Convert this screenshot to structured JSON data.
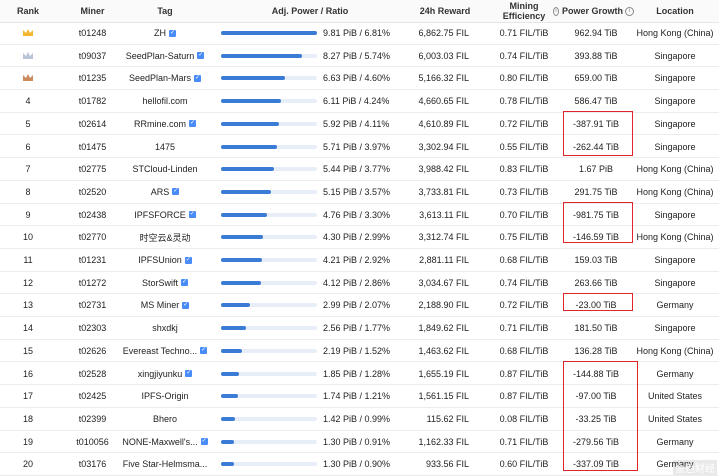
{
  "columns": {
    "rank": "Rank",
    "miner": "Miner",
    "tag": "Tag",
    "power": "Adj. Power / Ratio",
    "reward": "24h Reward",
    "eff_line1": "Mining",
    "eff_line2": "Efficiency",
    "growth": "Power Growth",
    "location": "Location"
  },
  "colors": {
    "bar": "#3a7bd5",
    "highlight": "#e0242a",
    "verified": "#4a8cf7"
  },
  "rows": [
    {
      "rank": "1",
      "miner": "t01248",
      "tag": "ZH",
      "verified": true,
      "power": "9.81 PiB / 6.81%",
      "bar": 1.0,
      "reward": "6,862.75 FIL",
      "eff": "0.71 FIL/TiB",
      "growth": "962.94 TiB",
      "loc": "Hong Kong (China)",
      "crown": "gold"
    },
    {
      "rank": "2",
      "miner": "t09037",
      "tag": "SeedPlan-Saturn",
      "verified": true,
      "power": "8.27 PiB / 5.74%",
      "bar": 0.84,
      "reward": "6,003.03 FIL",
      "eff": "0.74 FIL/TiB",
      "growth": "393.88 TiB",
      "loc": "Singapore",
      "crown": "silver"
    },
    {
      "rank": "3",
      "miner": "t01235",
      "tag": "SeedPlan-Mars",
      "verified": true,
      "power": "6.63 PiB / 4.60%",
      "bar": 0.67,
      "reward": "5,166.32 FIL",
      "eff": "0.80 FIL/TiB",
      "growth": "659.00 TiB",
      "loc": "Singapore",
      "crown": "bronze"
    },
    {
      "rank": "4",
      "miner": "t01782",
      "tag": "hellofil.com",
      "verified": false,
      "power": "6.11 PiB / 4.24%",
      "bar": 0.62,
      "reward": "4,660.65 FIL",
      "eff": "0.78 FIL/TiB",
      "growth": "586.47 TiB",
      "loc": "Singapore"
    },
    {
      "rank": "5",
      "miner": "t02614",
      "tag": "RRmine.com",
      "verified": true,
      "power": "5.92 PiB / 4.11%",
      "bar": 0.6,
      "reward": "4,610.89 FIL",
      "eff": "0.72 FIL/TiB",
      "growth": "-387.91 TiB",
      "loc": "Singapore"
    },
    {
      "rank": "6",
      "miner": "t01475",
      "tag": "1475",
      "verified": false,
      "power": "5.71 PiB / 3.97%",
      "bar": 0.58,
      "reward": "3,302.94 FIL",
      "eff": "0.55 FIL/TiB",
      "growth": "-262.44 TiB",
      "loc": "Singapore"
    },
    {
      "rank": "7",
      "miner": "t02775",
      "tag": "STCloud-Linden",
      "verified": false,
      "power": "5.44 PiB / 3.77%",
      "bar": 0.55,
      "reward": "3,988.42 FIL",
      "eff": "0.83 FIL/TiB",
      "growth": "1.67 PiB",
      "loc": "Hong Kong (China)"
    },
    {
      "rank": "8",
      "miner": "t02520",
      "tag": "ARS",
      "verified": true,
      "power": "5.15 PiB / 3.57%",
      "bar": 0.52,
      "reward": "3,733.81 FIL",
      "eff": "0.73 FIL/TiB",
      "growth": "291.75 TiB",
      "loc": "Hong Kong (China)"
    },
    {
      "rank": "9",
      "miner": "t02438",
      "tag": "IPFSFORCE",
      "verified": true,
      "power": "4.76 PiB / 3.30%",
      "bar": 0.48,
      "reward": "3,613.11 FIL",
      "eff": "0.70 FIL/TiB",
      "growth": "-981.75 TiB",
      "loc": "Singapore"
    },
    {
      "rank": "10",
      "miner": "t02770",
      "tag": "时空云&灵动",
      "verified": false,
      "power": "4.30 PiB / 2.99%",
      "bar": 0.44,
      "reward": "3,312.74 FIL",
      "eff": "0.75 FIL/TiB",
      "growth": "-146.59 TiB",
      "loc": "Hong Kong (China)"
    },
    {
      "rank": "11",
      "miner": "t01231",
      "tag": "IPFSUnion",
      "verified": true,
      "power": "4.21 PiB / 2.92%",
      "bar": 0.43,
      "reward": "2,881.11 FIL",
      "eff": "0.68 FIL/TiB",
      "growth": "159.03 TiB",
      "loc": "Singapore"
    },
    {
      "rank": "12",
      "miner": "t01272",
      "tag": "StorSwift",
      "verified": true,
      "power": "4.12 PiB / 2.86%",
      "bar": 0.42,
      "reward": "3,034.67 FIL",
      "eff": "0.74 FIL/TiB",
      "growth": "263.66 TiB",
      "loc": "Singapore"
    },
    {
      "rank": "13",
      "miner": "t02731",
      "tag": "MS Miner",
      "verified": true,
      "power": "2.99 PiB / 2.07%",
      "bar": 0.3,
      "reward": "2,188.90 FIL",
      "eff": "0.72 FIL/TiB",
      "growth": "-23.00 TiB",
      "loc": "Germany"
    },
    {
      "rank": "14",
      "miner": "t02303",
      "tag": "shxdkj",
      "verified": false,
      "power": "2.56 PiB / 1.77%",
      "bar": 0.26,
      "reward": "1,849.62 FIL",
      "eff": "0.71 FIL/TiB",
      "growth": "181.50 TiB",
      "loc": "Singapore"
    },
    {
      "rank": "15",
      "miner": "t02626",
      "tag": "Evereast Techno...",
      "verified": true,
      "power": "2.19 PiB / 1.52%",
      "bar": 0.22,
      "reward": "1,463.62 FIL",
      "eff": "0.68 FIL/TiB",
      "growth": "136.28 TiB",
      "loc": "Hong Kong (China)"
    },
    {
      "rank": "16",
      "miner": "t02528",
      "tag": "xingjiyunku",
      "verified": true,
      "power": "1.85 PiB / 1.28%",
      "bar": 0.19,
      "reward": "1,655.19 FIL",
      "eff": "0.87 FIL/TiB",
      "growth": "-144.88 TiB",
      "loc": "Germany"
    },
    {
      "rank": "17",
      "miner": "t02425",
      "tag": "IPFS-Origin",
      "verified": false,
      "power": "1.74 PiB / 1.21%",
      "bar": 0.18,
      "reward": "1,561.15 FIL",
      "eff": "0.87 FIL/TiB",
      "growth": "-97.00 TiB",
      "loc": "United States"
    },
    {
      "rank": "18",
      "miner": "t02399",
      "tag": "Bhero",
      "verified": false,
      "power": "1.42 PiB / 0.99%",
      "bar": 0.145,
      "reward": "115.62 FIL",
      "eff": "0.08 FIL/TiB",
      "growth": "-33.25 TiB",
      "loc": "United States"
    },
    {
      "rank": "19",
      "miner": "t010056",
      "tag": "NONE-Maxwell's...",
      "verified": true,
      "power": "1.30 PiB / 0.91%",
      "bar": 0.133,
      "reward": "1,162.33 FIL",
      "eff": "0.71 FIL/TiB",
      "growth": "-279.56 TiB",
      "loc": "Germany"
    },
    {
      "rank": "20",
      "miner": "t03176",
      "tag": "Five Star-Helmsma...",
      "verified": false,
      "power": "1.30 PiB / 0.90%",
      "bar": 0.133,
      "reward": "933.56 FIL",
      "eff": "0.60 FIL/TiB",
      "growth": "-337.09 TiB",
      "loc": "Germany"
    }
  ],
  "watermark": "金色财经"
}
